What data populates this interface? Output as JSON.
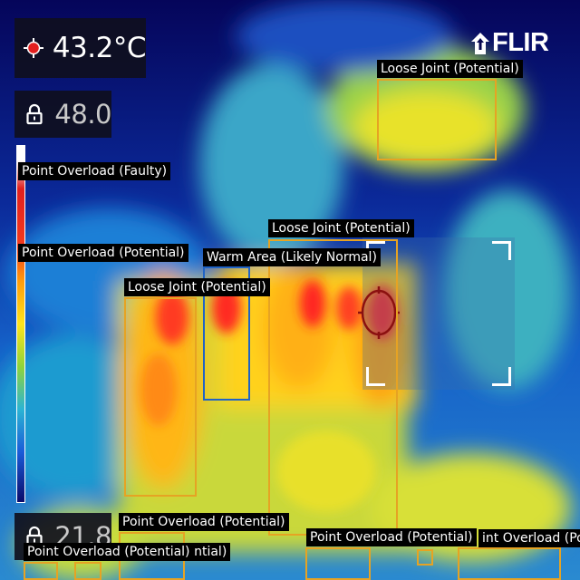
{
  "readouts": {
    "spot_temp": "43.2°C",
    "max_temp": "48.0",
    "min_temp": "21.8"
  },
  "brand": {
    "logo_text": "FLIR"
  },
  "icons": {
    "spot": "crosshair-spot-icon",
    "lock_max": "lock-icon",
    "lock_min": "lock-icon",
    "logo": "flir-logo-icon"
  },
  "colors": {
    "potential_box": "#e6a323",
    "normal_box": "#1f63c6",
    "label_bg": "#000000"
  },
  "detections": [
    {
      "label": "Loose Joint (Potential)"
    },
    {
      "label": "Point Overload (Faulty)"
    },
    {
      "label": "Point Overload (Potential)"
    },
    {
      "label": "Loose Joint (Potential)"
    },
    {
      "label": "Warm Area (Likely Normal)"
    },
    {
      "label": "Loose Joint (Potential)"
    },
    {
      "label": "Point Overload (Potential)"
    },
    {
      "label": "Point Overload (Potential)"
    },
    {
      "label": "Point Overload (Potential)"
    },
    {
      "label": "int Overload (Po"
    },
    {
      "label": "tential)"
    }
  ]
}
